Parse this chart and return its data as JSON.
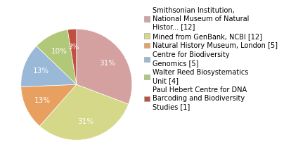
{
  "labels": [
    "Smithsonian Institution,\nNational Museum of Natural\nHistor... [12]",
    "Mined from GenBank, NCBI [12]",
    "Natural History Museum, London [5]",
    "Centre for Biodiversity\nGenomics [5]",
    "Walter Reed Biosystematics\nUnit [4]",
    "Paul Hebert Centre for DNA\nBarcoding and Biodiversity\nStudies [1]"
  ],
  "values": [
    12,
    12,
    5,
    5,
    4,
    1
  ],
  "colors": [
    "#d4a0a0",
    "#d4d888",
    "#e8a060",
    "#9ab8d8",
    "#b0c878",
    "#c05040"
  ],
  "legend_fontsize": 7.0,
  "autopct_fontsize": 7.5,
  "background_color": "#ffffff"
}
